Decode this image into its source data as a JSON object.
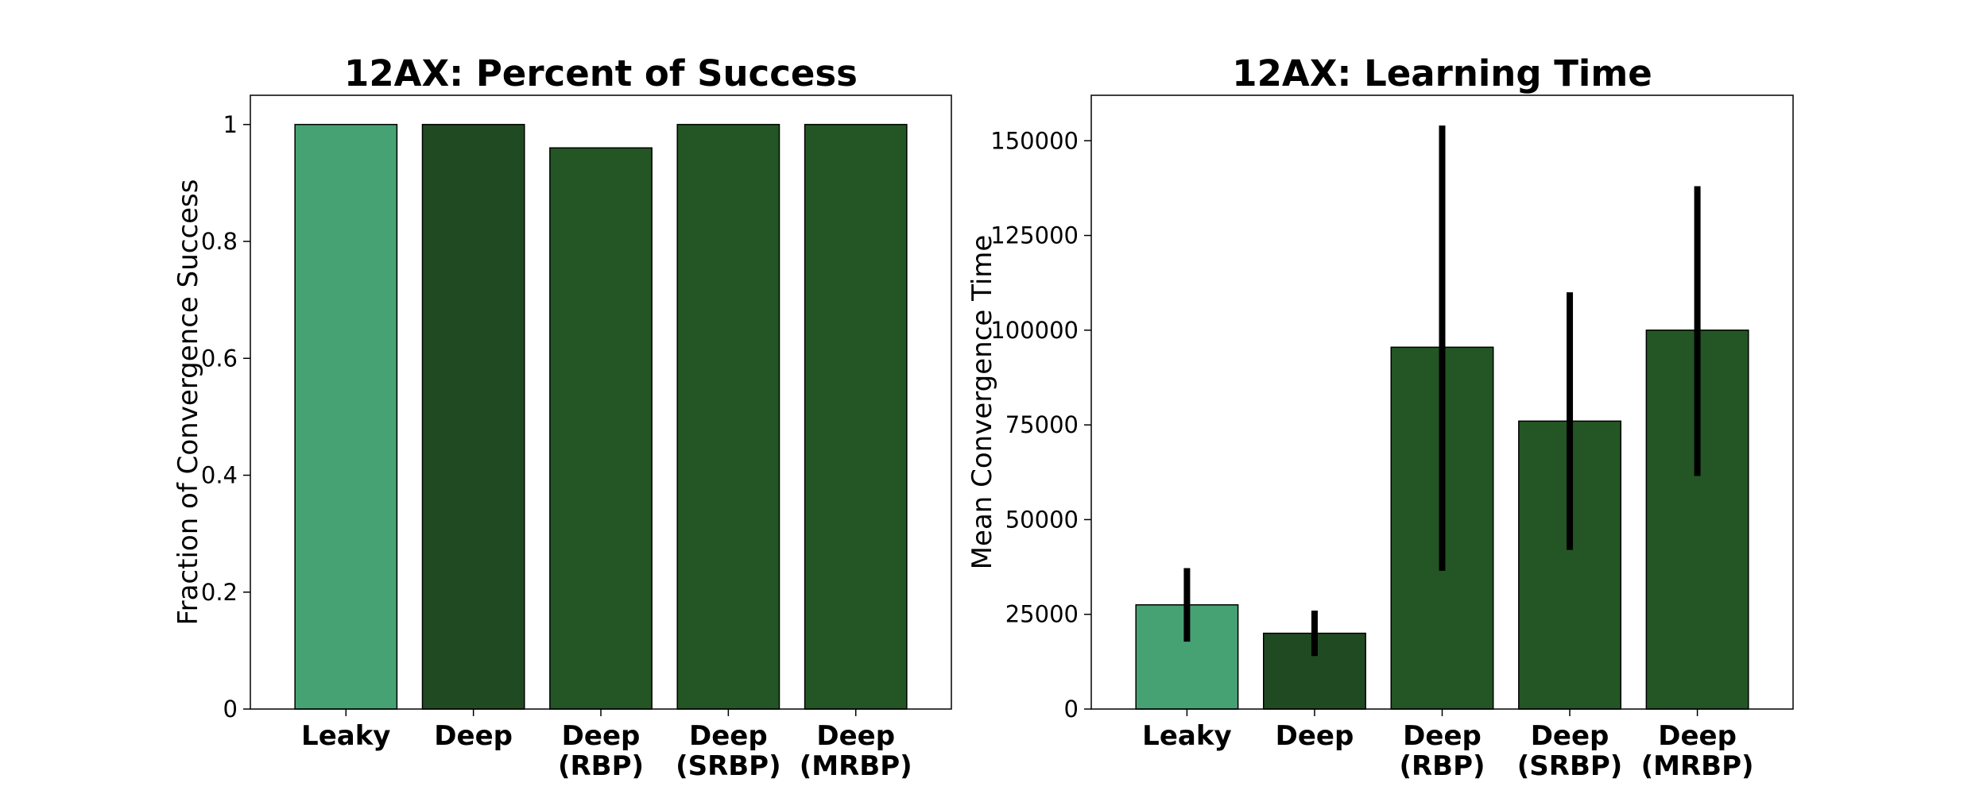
{
  "colors": {
    "leaky": "#47A273",
    "deep": "#204B22",
    "deep_variants": "#235624",
    "error_bar": "#000000",
    "edge": "#000000",
    "background": "#ffffff"
  },
  "chart_data": [
    {
      "type": "bar",
      "title": "12AX: Percent of Success",
      "xlabel": "",
      "ylabel": "Fraction of Convergence Success",
      "categories": [
        "Leaky",
        "Deep",
        "Deep\n(RBP)",
        "Deep\n(SRBP)",
        "Deep\n(MRBP)"
      ],
      "values": [
        1.0,
        1.0,
        0.96,
        1.0,
        1.0
      ],
      "bar_colors": [
        "#47A273",
        "#204B22",
        "#235624",
        "#235624",
        "#235624"
      ],
      "ylim": [
        0,
        1.05
      ],
      "yticks": [
        0,
        0.2,
        0.4,
        0.6,
        0.8,
        1
      ],
      "ytick_labels": [
        "0",
        "0.2",
        "0.4",
        "0.6",
        "0.8",
        "1"
      ],
      "grid": false,
      "legend": "none"
    },
    {
      "type": "bar",
      "title": "12AX: Learning Time",
      "xlabel": "",
      "ylabel": "Mean Convergence Time",
      "categories": [
        "Leaky",
        "Deep",
        "Deep\n(RBP)",
        "Deep\n(SRBP)",
        "Deep\n(MRBP)"
      ],
      "values": [
        27500,
        20000,
        95500,
        76000,
        100000
      ],
      "error_low": [
        17800,
        14000,
        36500,
        42000,
        61500
      ],
      "error_high": [
        37200,
        26000,
        154000,
        110000,
        138000
      ],
      "bar_colors": [
        "#47A273",
        "#204B22",
        "#235624",
        "#235624",
        "#235624"
      ],
      "ylim": [
        0,
        162000
      ],
      "yticks": [
        0,
        25000,
        50000,
        75000,
        100000,
        125000,
        150000
      ],
      "ytick_labels": [
        "0",
        "25000",
        "50000",
        "75000",
        "100000",
        "125000",
        "150000"
      ],
      "grid": false,
      "legend": "none"
    }
  ]
}
